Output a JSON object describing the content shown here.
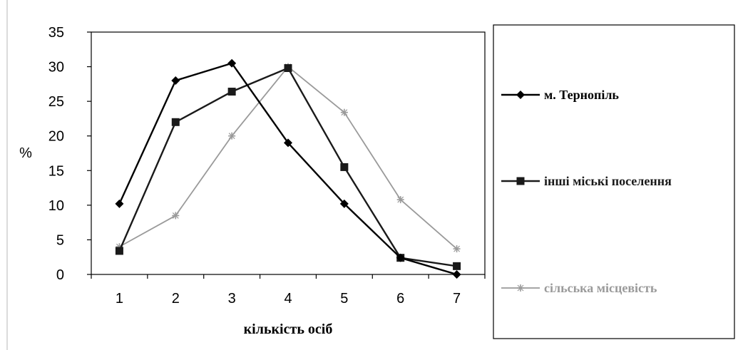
{
  "chart_data": {
    "type": "line",
    "title": "",
    "xlabel": "кількість осіб",
    "ylabel": "%",
    "x": [
      1,
      2,
      3,
      4,
      5,
      6,
      7
    ],
    "xlim": [
      0.5,
      7.5
    ],
    "ylim": [
      0,
      35
    ],
    "yticks": [
      0,
      5,
      10,
      15,
      20,
      25,
      30,
      35
    ],
    "grid": false,
    "legend_position": "right",
    "series": [
      {
        "name": "м. Тернопіль",
        "marker": "diamond",
        "color": "#000000",
        "values": [
          10.2,
          28,
          30.5,
          19,
          10.2,
          2.4,
          0
        ]
      },
      {
        "name": "інші міські поселення",
        "marker": "square",
        "color": "#1a1a1a",
        "values": [
          3.4,
          22,
          26.4,
          29.8,
          15.5,
          2.4,
          1.2
        ]
      },
      {
        "name": "сільська місцевість",
        "marker": "star",
        "color": "#9a9a9a",
        "values": [
          4,
          8.5,
          20,
          30,
          23.4,
          10.8,
          3.7
        ]
      }
    ]
  }
}
